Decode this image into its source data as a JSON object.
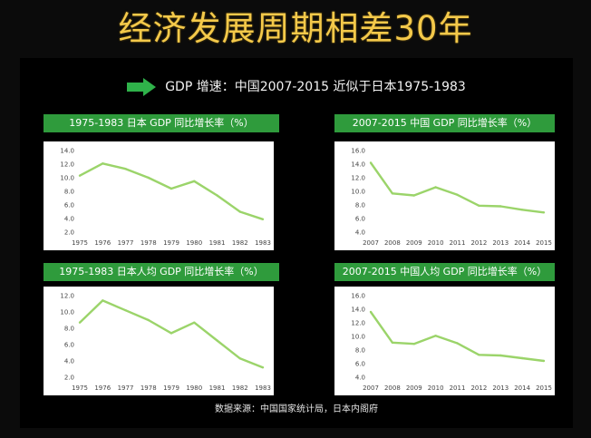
{
  "title": "经济发展周期相差30年",
  "headline": "GDP 增速：中国2007-2015 近似于日本1975-1983",
  "source": "数据来源：中国国家统计局，日本内阁府",
  "colors": {
    "line": "#9bd46a",
    "tag": "#2f9b3c",
    "title": "#f4c94a",
    "arrow": "#2fb24a"
  },
  "chart_data": [
    {
      "type": "line",
      "title": "1975-1983 日本 GDP 同比增长率（%）",
      "x": [
        "1975",
        "1976",
        "1977",
        "1978",
        "1979",
        "1980",
        "1981",
        "1982",
        "1983"
      ],
      "series": [
        {
          "values": [
            10.3,
            12.1,
            11.3,
            10.0,
            8.4,
            9.5,
            7.4,
            5.0,
            3.9
          ]
        }
      ],
      "ylim": [
        2.0,
        14.0
      ],
      "yticks": [
        "2.0",
        "4.0",
        "6.0",
        "8.0",
        "10.0",
        "12.0",
        "14.0"
      ],
      "xlabel": "",
      "ylabel": "",
      "grid": false
    },
    {
      "type": "line",
      "title": "2007-2015 中国 GDP 同比增长率（%）",
      "x": [
        "2007",
        "2008",
        "2009",
        "2010",
        "2011",
        "2012",
        "2013",
        "2014",
        "2015"
      ],
      "series": [
        {
          "values": [
            14.2,
            9.7,
            9.4,
            10.6,
            9.5,
            7.9,
            7.8,
            7.3,
            6.9
          ]
        }
      ],
      "ylim": [
        4.0,
        16.0
      ],
      "yticks": [
        "4.0",
        "6.0",
        "8.0",
        "10.0",
        "12.0",
        "14.0",
        "16.0"
      ],
      "xlabel": "",
      "ylabel": "",
      "grid": false
    },
    {
      "type": "line",
      "title": "1975-1983 日本人均 GDP 同比增长率（%）",
      "x": [
        "1975",
        "1976",
        "1977",
        "1978",
        "1979",
        "1980",
        "1981",
        "1982",
        "1983"
      ],
      "series": [
        {
          "values": [
            8.7,
            11.4,
            10.2,
            9.0,
            7.4,
            8.7,
            6.5,
            4.3,
            3.2
          ]
        }
      ],
      "ylim": [
        2.0,
        12.0
      ],
      "yticks": [
        "2.0",
        "4.0",
        "6.0",
        "8.0",
        "10.0",
        "12.0"
      ],
      "xlabel": "",
      "ylabel": "",
      "grid": false
    },
    {
      "type": "line",
      "title": "2007-2015 中国人均 GDP 同比增长率（%）",
      "x": [
        "2007",
        "2008",
        "2009",
        "2010",
        "2011",
        "2012",
        "2013",
        "2014",
        "2015"
      ],
      "series": [
        {
          "values": [
            13.6,
            9.1,
            8.9,
            10.1,
            9.0,
            7.3,
            7.2,
            6.8,
            6.4
          ]
        }
      ],
      "ylim": [
        4.0,
        16.0
      ],
      "yticks": [
        "4.0",
        "6.0",
        "8.0",
        "10.0",
        "12.0",
        "14.0",
        "16.0"
      ],
      "xlabel": "",
      "ylabel": "",
      "grid": false
    }
  ]
}
